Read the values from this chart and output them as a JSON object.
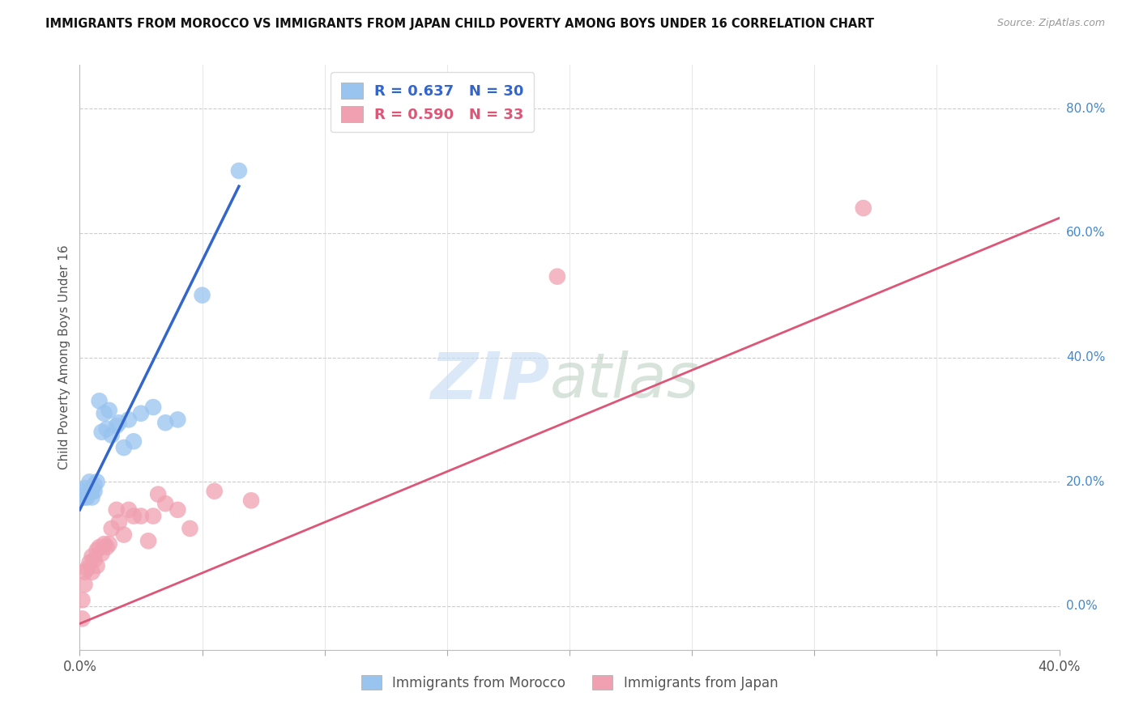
{
  "title": "IMMIGRANTS FROM MOROCCO VS IMMIGRANTS FROM JAPAN CHILD POVERTY AMONG BOYS UNDER 16 CORRELATION CHART",
  "source": "Source: ZipAtlas.com",
  "ylabel": "Child Poverty Among Boys Under 16",
  "xlim": [
    0.0,
    0.4
  ],
  "ylim": [
    -0.07,
    0.87
  ],
  "ytick_vals": [
    0.0,
    0.2,
    0.4,
    0.6,
    0.8
  ],
  "ytick_labels": [
    "0.0%",
    "20.0%",
    "40.0%",
    "60.0%",
    "80.0%"
  ],
  "xtick_positions": [
    0.0,
    0.05,
    0.1,
    0.15,
    0.2,
    0.25,
    0.3,
    0.35,
    0.4
  ],
  "xtick_labels": [
    "0.0%",
    "",
    "",
    "",
    "",
    "",
    "",
    "",
    "40.0%"
  ],
  "morocco_color": "#99C4F0",
  "japan_color": "#F0A0B0",
  "morocco_R": 0.637,
  "morocco_N": 30,
  "japan_R": 0.59,
  "japan_N": 33,
  "morocco_line_color": "#3366CC",
  "japan_line_color": "#DD5577",
  "background_color": "#FFFFFF",
  "morocco_scatter_x": [
    0.001,
    0.001,
    0.002,
    0.002,
    0.003,
    0.003,
    0.004,
    0.004,
    0.005,
    0.005,
    0.006,
    0.006,
    0.007,
    0.008,
    0.009,
    0.01,
    0.011,
    0.012,
    0.013,
    0.015,
    0.016,
    0.018,
    0.02,
    0.022,
    0.025,
    0.03,
    0.035,
    0.04,
    0.05,
    0.065
  ],
  "morocco_scatter_y": [
    0.175,
    0.185,
    0.19,
    0.175,
    0.18,
    0.175,
    0.185,
    0.2,
    0.175,
    0.185,
    0.185,
    0.195,
    0.2,
    0.33,
    0.28,
    0.31,
    0.285,
    0.315,
    0.275,
    0.29,
    0.295,
    0.255,
    0.3,
    0.265,
    0.31,
    0.32,
    0.295,
    0.3,
    0.5,
    0.7
  ],
  "japan_scatter_x": [
    0.001,
    0.001,
    0.002,
    0.002,
    0.003,
    0.004,
    0.005,
    0.005,
    0.006,
    0.007,
    0.007,
    0.008,
    0.009,
    0.01,
    0.011,
    0.012,
    0.013,
    0.015,
    0.016,
    0.018,
    0.02,
    0.022,
    0.025,
    0.028,
    0.03,
    0.032,
    0.035,
    0.04,
    0.045,
    0.055,
    0.07,
    0.195,
    0.32
  ],
  "japan_scatter_y": [
    -0.02,
    0.01,
    0.035,
    0.055,
    0.06,
    0.07,
    0.055,
    0.08,
    0.075,
    0.065,
    0.09,
    0.095,
    0.085,
    0.1,
    0.095,
    0.1,
    0.125,
    0.155,
    0.135,
    0.115,
    0.155,
    0.145,
    0.145,
    0.105,
    0.145,
    0.18,
    0.165,
    0.155,
    0.125,
    0.185,
    0.17,
    0.53,
    0.64
  ],
  "morocco_line_x": [
    0.0,
    0.065
  ],
  "morocco_line_y_intercept": 0.155,
  "morocco_line_slope": 8.0,
  "japan_line_x": [
    0.0,
    0.4
  ],
  "japan_line_y_intercept": -0.028,
  "japan_line_slope": 1.63
}
